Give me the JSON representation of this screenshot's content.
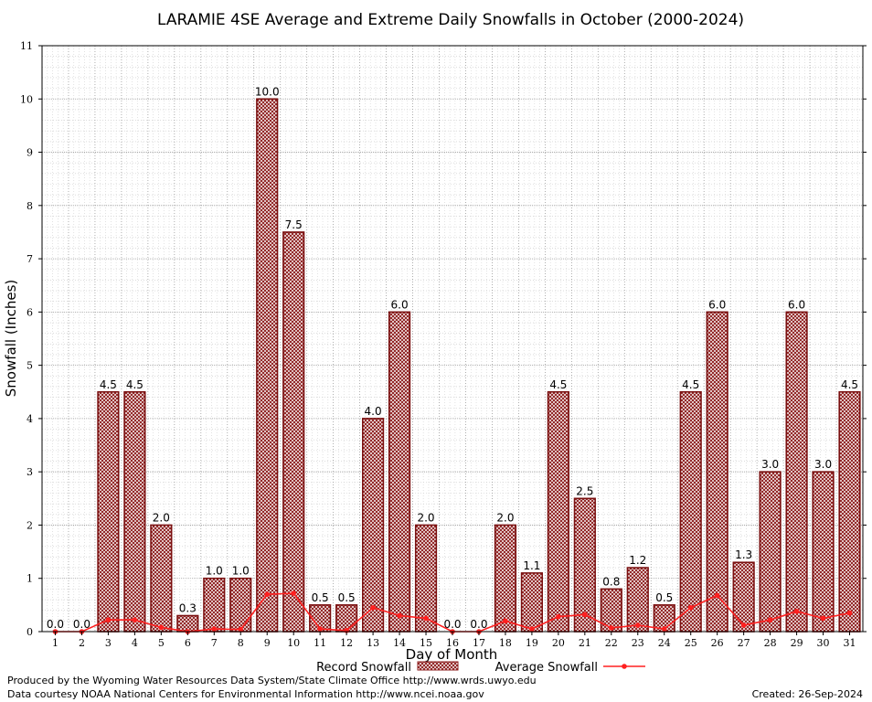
{
  "chart_data": {
    "type": "bar",
    "title": "LARAMIE 4SE Average and Extreme Daily Snowfalls in October (2000-2024)",
    "xlabel": "Day of Month",
    "ylabel": "Snowfall (Inches)",
    "ylim": [
      0,
      11
    ],
    "yticks": [
      0,
      1,
      2,
      3,
      4,
      5,
      6,
      7,
      8,
      9,
      10,
      11
    ],
    "grid": true,
    "legend_position": "bottom",
    "categories": [
      "1",
      "2",
      "3",
      "4",
      "5",
      "6",
      "7",
      "8",
      "9",
      "10",
      "11",
      "12",
      "13",
      "14",
      "15",
      "16",
      "17",
      "18",
      "19",
      "20",
      "21",
      "22",
      "23",
      "24",
      "25",
      "26",
      "27",
      "28",
      "29",
      "30",
      "31"
    ],
    "series": [
      {
        "name": "Record Snowfall",
        "kind": "bar",
        "color": "#a52a2a",
        "values": [
          0.0,
          0.0,
          4.5,
          4.5,
          2.0,
          0.3,
          1.0,
          1.0,
          10.0,
          7.5,
          0.5,
          0.5,
          4.0,
          6.0,
          2.0,
          0.0,
          0.0,
          2.0,
          1.1,
          4.5,
          2.5,
          0.8,
          1.2,
          0.5,
          4.5,
          6.0,
          1.3,
          3.0,
          6.0,
          3.0,
          4.5
        ],
        "labels": [
          "0.0",
          "0.0",
          "4.5",
          "4.5",
          "2.0",
          "0.3",
          "1.0",
          "1.0",
          "10.0",
          "7.5",
          "0.5",
          "0.5",
          "4.0",
          "6.0",
          "2.0",
          "0.0",
          "0.0",
          "2.0",
          "1.1",
          "4.5",
          "2.5",
          "0.8",
          "1.2",
          "0.5",
          "4.5",
          "6.0",
          "1.3",
          "3.0",
          "6.0",
          "3.0",
          "4.5"
        ]
      },
      {
        "name": "Average Snowfall",
        "kind": "line",
        "color": "#ff2020",
        "values": [
          0.0,
          0.0,
          0.22,
          0.22,
          0.08,
          0.0,
          0.05,
          0.04,
          0.7,
          0.72,
          0.05,
          0.02,
          0.45,
          0.3,
          0.25,
          0.0,
          0.0,
          0.2,
          0.05,
          0.28,
          0.32,
          0.07,
          0.12,
          0.05,
          0.45,
          0.68,
          0.12,
          0.22,
          0.38,
          0.25,
          0.35
        ]
      }
    ]
  },
  "footer": {
    "produced_by": "Produced by the Wyoming Water Resources Data System/State Climate Office http://www.wrds.uwyo.edu",
    "data_courtesy": "Data courtesy NOAA National Centers for Environmental Information http://www.ncei.noaa.gov",
    "created": "Created:  26-Sep-2024"
  }
}
